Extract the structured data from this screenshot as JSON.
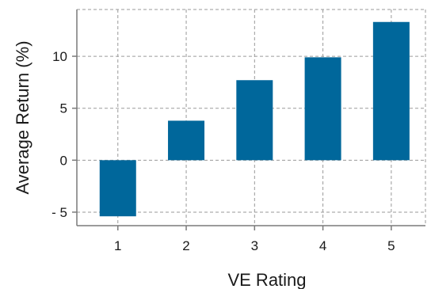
{
  "chart_data": {
    "type": "bar",
    "categories": [
      "1",
      "2",
      "3",
      "4",
      "5"
    ],
    "values": [
      -5.4,
      3.8,
      7.7,
      9.9,
      13.3
    ],
    "title": "",
    "xlabel": "VE Rating",
    "ylabel": "Average Return (%)",
    "ylim": [
      -6.3,
      14.5
    ],
    "yticks": [
      -5,
      0,
      5,
      10
    ],
    "ytick_labels": [
      "- 5",
      "0",
      "5",
      "10"
    ],
    "grid": true,
    "legend": "none",
    "bar_color": "#00679b"
  }
}
